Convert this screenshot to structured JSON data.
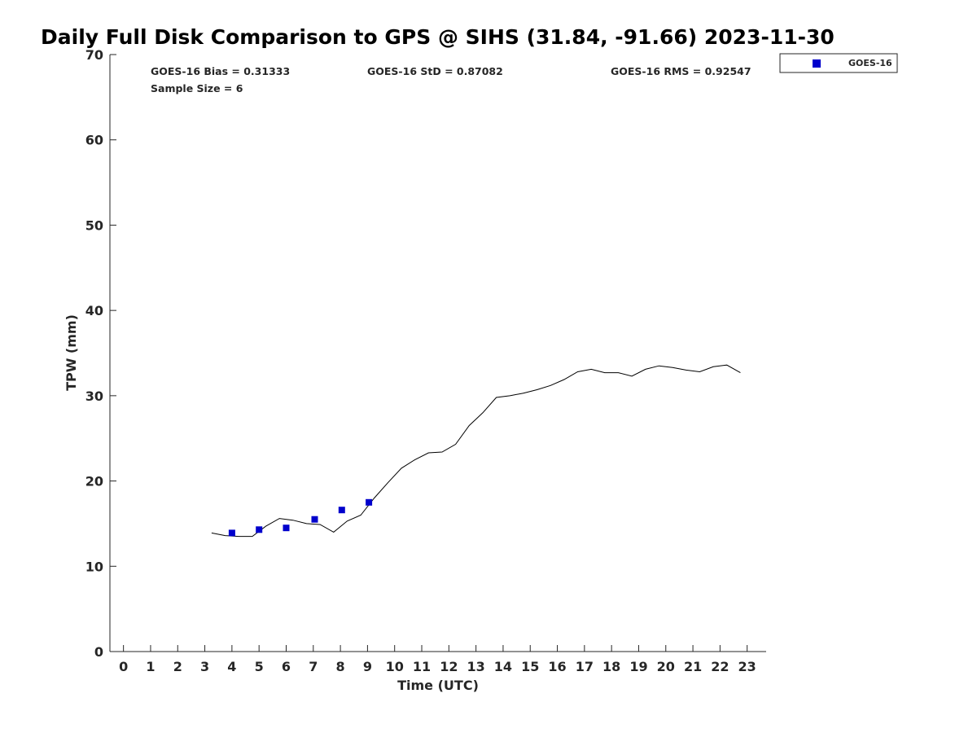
{
  "chart_data": {
    "type": "line",
    "title": "Daily Full Disk Comparison to GPS @ SIHS (31.84, -91.66) 2023-11-30",
    "xlabel": "Time (UTC)",
    "ylabel": "TPW (mm)",
    "xlim": [
      -0.5,
      23.7
    ],
    "ylim": [
      0,
      70
    ],
    "x_ticks": [
      0,
      1,
      2,
      3,
      4,
      5,
      6,
      7,
      8,
      9,
      10,
      11,
      12,
      13,
      14,
      15,
      16,
      17,
      18,
      19,
      20,
      21,
      22,
      23
    ],
    "y_ticks": [
      0,
      10,
      20,
      30,
      40,
      50,
      60,
      70
    ],
    "grid": false,
    "legend_position": "top-right, outside plot",
    "stats": {
      "bias": "GOES-16 Bias = 0.31333",
      "std": "GOES-16 StD = 0.87082",
      "rms": "GOES-16 RMS = 0.92547",
      "sample_size": "Sample Size = 6"
    },
    "series": [
      {
        "kind": "line",
        "color": "#000000",
        "x": [
          3.25,
          3.75,
          4.25,
          4.75,
          5.25,
          5.75,
          6.25,
          6.75,
          7.25,
          7.75,
          8.25,
          8.75,
          9.25,
          9.75,
          10.25,
          10.75,
          11.25,
          11.75,
          12.25,
          12.75,
          13.25,
          13.75,
          14.25,
          14.75,
          15.25,
          15.75,
          16.25,
          16.75,
          17.25,
          17.75,
          18.25,
          18.75,
          19.25,
          19.75,
          20.25,
          20.75,
          21.25,
          21.75,
          22.25,
          22.75
        ],
        "y": [
          13.9,
          13.6,
          13.5,
          13.5,
          14.7,
          15.6,
          15.4,
          15.0,
          14.9,
          14.0,
          15.3,
          16.0,
          18.0,
          19.8,
          21.5,
          22.5,
          23.3,
          23.4,
          24.3,
          26.5,
          28.0,
          29.8,
          30.0,
          30.3,
          30.7,
          31.2,
          31.9,
          32.8,
          33.1,
          32.7,
          32.7,
          32.3,
          33.1,
          33.5,
          33.3,
          33.0,
          32.8,
          33.4,
          33.6,
          32.7
        ]
      },
      {
        "name": "GOES-16",
        "kind": "scatter",
        "marker": "square",
        "color": "#0000CC",
        "x": [
          4.0,
          5.0,
          6.0,
          7.05,
          8.05,
          9.05
        ],
        "y": [
          13.9,
          14.3,
          14.5,
          15.5,
          16.6,
          17.5
        ]
      }
    ]
  }
}
